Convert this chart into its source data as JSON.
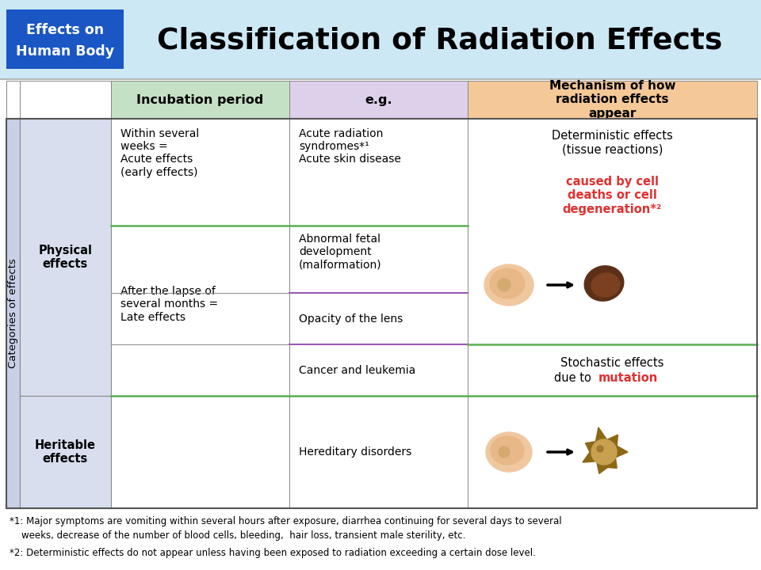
{
  "title": "Classification of Radiation Effects",
  "title_badge_line1": "Effects on",
  "title_badge_line2": "Human Body",
  "badge_color": "#1a56c4",
  "header_bg": "#cce8f4",
  "header_col1_bg": "#c5e1c5",
  "header_col2_bg": "#ddd0ea",
  "header_col3_bg": "#f5c897",
  "left_sidebar_bg": "#c8d0e8",
  "physical_bg": "#d8deee",
  "cell_white": "#ffffff",
  "green_line": "#5aaf50",
  "purple_line": "#9b59b6",
  "red_color": "#e03030",
  "dark_border": "#888888",
  "footnote1_line1": "*1: Major symptoms are vomiting within several hours after exposure, diarrhea continuing for several days to several",
  "footnote1_line2": "    weeks, decrease of the number of blood cells, bleeding,  hair loss, transient male sterility, etc.",
  "footnote2": "*2: Deterministic effects do not appear unless having been exposed to radiation exceeding a certain dose level."
}
